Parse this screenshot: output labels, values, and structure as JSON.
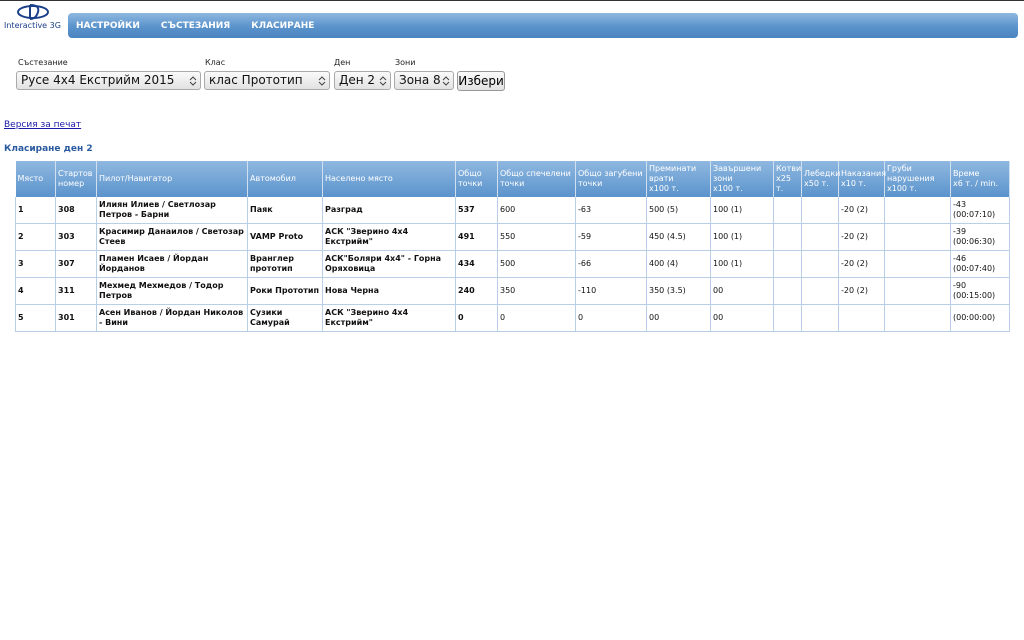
{
  "logo": {
    "text": "Interactive 3G"
  },
  "nav": {
    "items": [
      "НАСТРОЙКИ",
      "СЪСТЕЗАНИЯ",
      "КЛАСИРАНЕ"
    ]
  },
  "filters": [
    {
      "label": "Състезание",
      "value": "Русе 4x4 Екстрийм 2015"
    },
    {
      "label": "Клас",
      "value": "клас Прототип"
    },
    {
      "label": "Ден",
      "value": "Ден 2"
    },
    {
      "label": "Зони",
      "value": "Зона 8"
    }
  ],
  "button": "Избери",
  "print_link": "Версия за печат",
  "heading": "Класиране ден 2",
  "table": {
    "columns": [
      {
        "label": "Място"
      },
      {
        "label": "Стартов номер"
      },
      {
        "label": "Пилот/Навигатор"
      },
      {
        "label": "Автомобил"
      },
      {
        "label": "Населено място"
      },
      {
        "label": "Общо точки"
      },
      {
        "label": "Общо спечелени точки"
      },
      {
        "label": "Общо загубени точки"
      },
      {
        "label": "Преминати врати",
        "unit": "x100 т."
      },
      {
        "label": "Завършени зони",
        "unit": "x100 т."
      },
      {
        "label": "Котви",
        "unit": "x25 т."
      },
      {
        "label": "Лебедки",
        "unit": "x50 т."
      },
      {
        "label": "Наказания",
        "unit": "x10 т."
      },
      {
        "label": "Груби нарушения",
        "unit": "x100 т."
      },
      {
        "label": "Време",
        "unit": "x6 т. / min."
      }
    ],
    "rows": [
      [
        "1",
        "308",
        "Илиян Илиев / Светлозар Петров - Барни",
        "Паяк",
        "Разград",
        "537",
        "600",
        "-63",
        "500 (5)",
        "100 (1)",
        null,
        null,
        "-20 (2)",
        null,
        "-43 (00:07:10)"
      ],
      [
        "2",
        "303",
        "Красимир Данаилов / Светозар Стеев",
        "VAMP Proto",
        "АСК \"Зверино 4x4 Екстрийм\"",
        "491",
        "550",
        "-59",
        "450 (4.5)",
        "100 (1)",
        null,
        null,
        "-20 (2)",
        null,
        "-39 (00:06:30)"
      ],
      [
        "3",
        "307",
        "Пламен Исаев / Йордан Йорданов",
        "Вранглер прототип",
        "АСК\"Боляри 4x4\" - Горна Оряховица",
        "434",
        "500",
        "-66",
        "400 (4)",
        "100 (1)",
        null,
        null,
        "-20 (2)",
        null,
        "-46 (00:07:40)"
      ],
      [
        "4",
        "311",
        "Мехмед Мехмедов / Тодор Петров",
        "Роки Прототип",
        "Нова Черна",
        "240",
        "350",
        "-110",
        "350 (3.5)",
        "00",
        null,
        null,
        "-20 (2)",
        null,
        "-90 (00:15:00)"
      ],
      [
        "5",
        "301",
        "Асен Иванов / Йордан Николов - Вини",
        "Сузики Самурай",
        "АСК \"Зверино 4x4 Екстрийм\"",
        "0",
        "0",
        "0",
        "00",
        "00",
        null,
        null,
        null,
        null,
        "(00:00:00)"
      ]
    ]
  }
}
